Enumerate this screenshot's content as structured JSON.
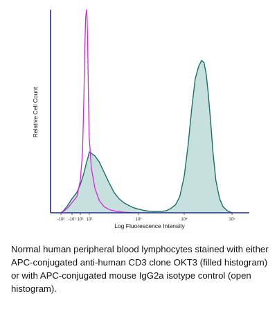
{
  "chart_data": {
    "type": "area",
    "title": "",
    "xlabel": "Log Fluorescence Intensity",
    "ylabel": "Relative Cell Count",
    "x_scale": "log",
    "xlim": [
      -150,
      150000
    ],
    "ylim": [
      0,
      100
    ],
    "grid": false,
    "x_ticks": [
      {
        "value": -100,
        "label": "-10²"
      },
      {
        "value": -10,
        "label": "-10¹"
      },
      {
        "value": 10,
        "label": "10¹"
      },
      {
        "value": 100,
        "label": "10²"
      },
      {
        "value": 1000,
        "label": "10³"
      },
      {
        "value": 10000,
        "label": "10⁴"
      },
      {
        "value": 100000,
        "label": "10⁵"
      }
    ],
    "series": [
      {
        "style": "filled",
        "color": "#1a6e66",
        "fill": "#c6e1dd",
        "x": [
          -100,
          -60,
          -30,
          -10,
          0,
          10,
          20,
          35,
          50,
          70,
          100,
          130,
          160,
          200,
          250,
          320,
          400,
          500,
          650,
          800,
          1000,
          1300,
          1700,
          2300,
          3000,
          4000,
          5000,
          6500,
          8000,
          10000,
          12000,
          14500,
          17000,
          20000,
          23000,
          26000,
          29000,
          32000,
          36000,
          40000,
          46000,
          55000,
          65000,
          80000,
          100000
        ],
        "values": [
          0,
          1,
          3,
          7,
          10,
          14,
          18,
          22,
          25,
          27,
          30,
          28,
          25,
          20,
          15,
          10,
          7,
          5,
          3.5,
          2.5,
          1.8,
          1.2,
          0.8,
          0.6,
          0.6,
          1,
          2,
          4,
          8,
          18,
          33,
          52,
          66,
          72,
          75,
          74,
          68,
          58,
          44,
          30,
          16,
          7,
          3,
          1,
          0
        ]
      },
      {
        "style": "open",
        "color": "#e020e0",
        "x": [
          -100,
          -50,
          -20,
          0,
          10,
          18,
          25,
          32,
          40,
          48,
          56,
          64,
          72,
          82,
          95,
          110,
          130,
          160,
          200,
          260,
          350,
          500,
          700,
          1000
        ],
        "values": [
          0,
          1,
          3,
          8,
          16,
          30,
          55,
          80,
          96,
          100,
          97,
          88,
          72,
          55,
          38,
          22,
          12,
          6,
          3,
          1.5,
          0.8,
          0.3,
          0.1,
          0
        ]
      }
    ]
  },
  "caption": "Normal human peripheral blood lymphocytes stained with either APC-conjugated anti-human CD3 clone OKT3 (filled histogram) or with APC-conjugated mouse IgG2a isotype control (open histogram)."
}
